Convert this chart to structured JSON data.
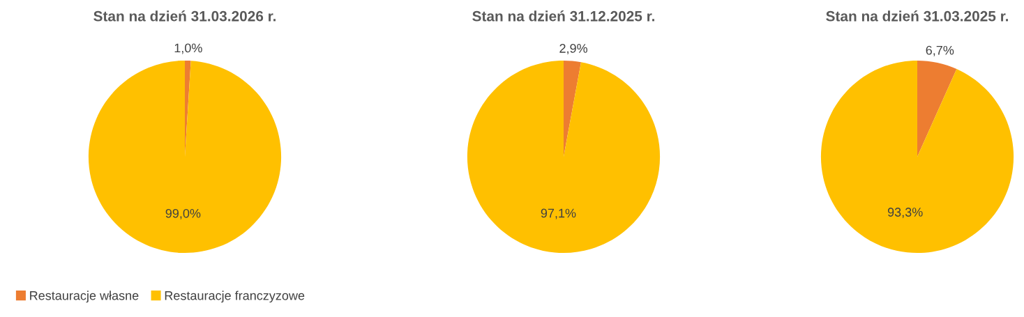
{
  "chart_data": [
    {
      "type": "pie",
      "title": "Stan na dzień 31.03.2026 r.",
      "categories": [
        "Restauracje własne",
        "Restauracje franczyzowe"
      ],
      "values": [
        1.0,
        99.0
      ],
      "colors": [
        "#ed7d31",
        "#ffc000"
      ],
      "value_labels": [
        "1,0%",
        "99,0%"
      ],
      "legend": "bottom left"
    },
    {
      "type": "pie",
      "title": "Stan na dzień 31.12.2025 r.",
      "categories": [
        null,
        null
      ],
      "values": [
        2.9,
        97.1
      ],
      "colors": [
        "#ed7d31",
        "#ffc000"
      ],
      "value_labels": [
        "2,9%",
        "97,1%"
      ]
    },
    {
      "type": "pie",
      "title": "Stan na dzień 31.03.2025 r.",
      "categories": [
        null,
        null
      ],
      "values": [
        6.7,
        93.3
      ],
      "colors": [
        "#ed7d31",
        "#ffc000"
      ],
      "value_labels": [
        "6,7%",
        "93,3%"
      ]
    }
  ]
}
